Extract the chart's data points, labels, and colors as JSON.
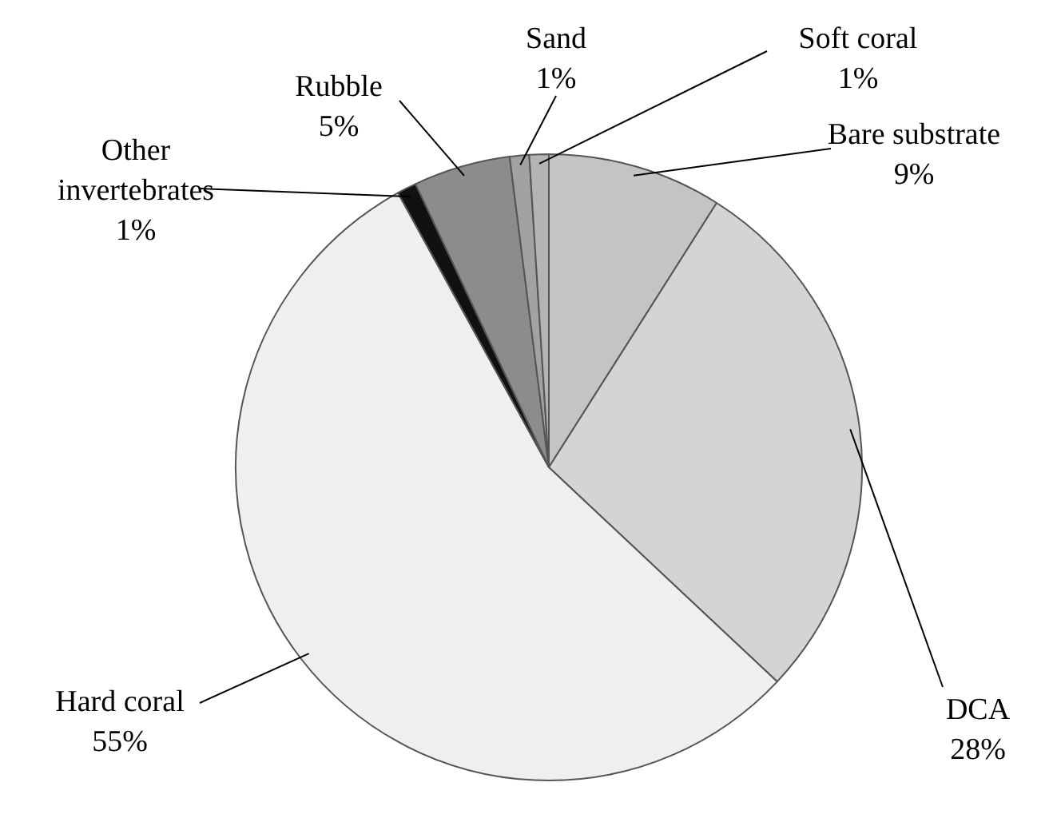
{
  "chart_data": {
    "type": "pie",
    "categories": [
      "Bare substrate",
      "DCA",
      "Hard coral",
      "Other invertebrates",
      "Rubble",
      "Sand",
      "Soft coral"
    ],
    "values": [
      9,
      28,
      55,
      1,
      5,
      1,
      1
    ],
    "value_labels": [
      "9%",
      "28%",
      "55%",
      "1%",
      "5%",
      "1%",
      "1%"
    ],
    "colors": [
      "#c4c4c4",
      "#d4d4d4",
      "#efefef",
      "#111111",
      "#8c8c8c",
      "#a2a2a2",
      "#b4b4b4"
    ],
    "legend": false
  }
}
